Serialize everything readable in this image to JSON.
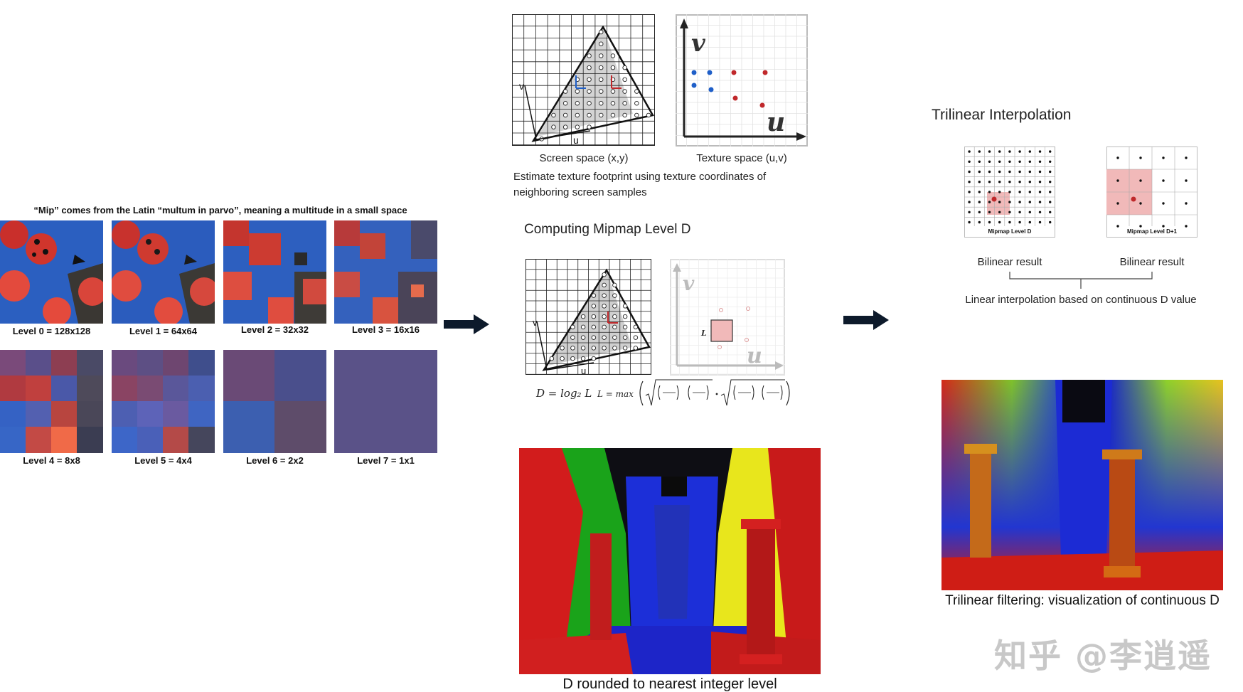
{
  "mipmap": {
    "title": "“Mip” comes from the Latin “multum in parvo”, meaning a multitude in a small space",
    "levels": [
      {
        "label": "Level 0 = 128x128"
      },
      {
        "label": "Level 1 = 64x64"
      },
      {
        "label": "Level 2 = 32x32"
      },
      {
        "label": "Level 3 = 16x16"
      },
      {
        "label": "Level 4 = 8x8"
      },
      {
        "label": "Level 5 = 4x4"
      },
      {
        "label": "Level 6 = 2x2"
      },
      {
        "label": "Level 7 = 1x1"
      }
    ]
  },
  "footprint": {
    "screen_caption": "Screen space (x,y)",
    "texture_caption": "Texture space (u,v)",
    "estimate_text_line1": "Estimate texture footprint using texture coordinates of",
    "estimate_text_line2": "neighboring screen samples",
    "axis_v": "v",
    "axis_u": "u",
    "screen_axis_v": "v",
    "screen_axis_u": "u"
  },
  "mipmap_level": {
    "heading": "Computing Mipmap Level D",
    "formula_d": "D = log₂ L",
    "formula_l": "L = max",
    "square_label": "L"
  },
  "trilinear": {
    "heading": "Trilinear Interpolation",
    "level_d_label": "Mipmap Level D",
    "level_d1_label": "Mipmap Level D+1",
    "bilinear_left": "Bilinear result",
    "bilinear_right": "Bilinear result",
    "linear_text": "Linear interpolation based on continuous D value"
  },
  "renders": {
    "rounded_caption": "D rounded to nearest integer level",
    "continuous_caption": "Trilinear filtering: visualization of continuous D"
  },
  "watermark": "知乎 @李逍遥",
  "colors": {
    "texture_blue": "#1f5fc8",
    "bug_red": "#e0493c",
    "arrow_navy": "#0d1a2b",
    "grid_gray": "#b5b5b5",
    "highlight_pink": "#f1b9b9"
  }
}
